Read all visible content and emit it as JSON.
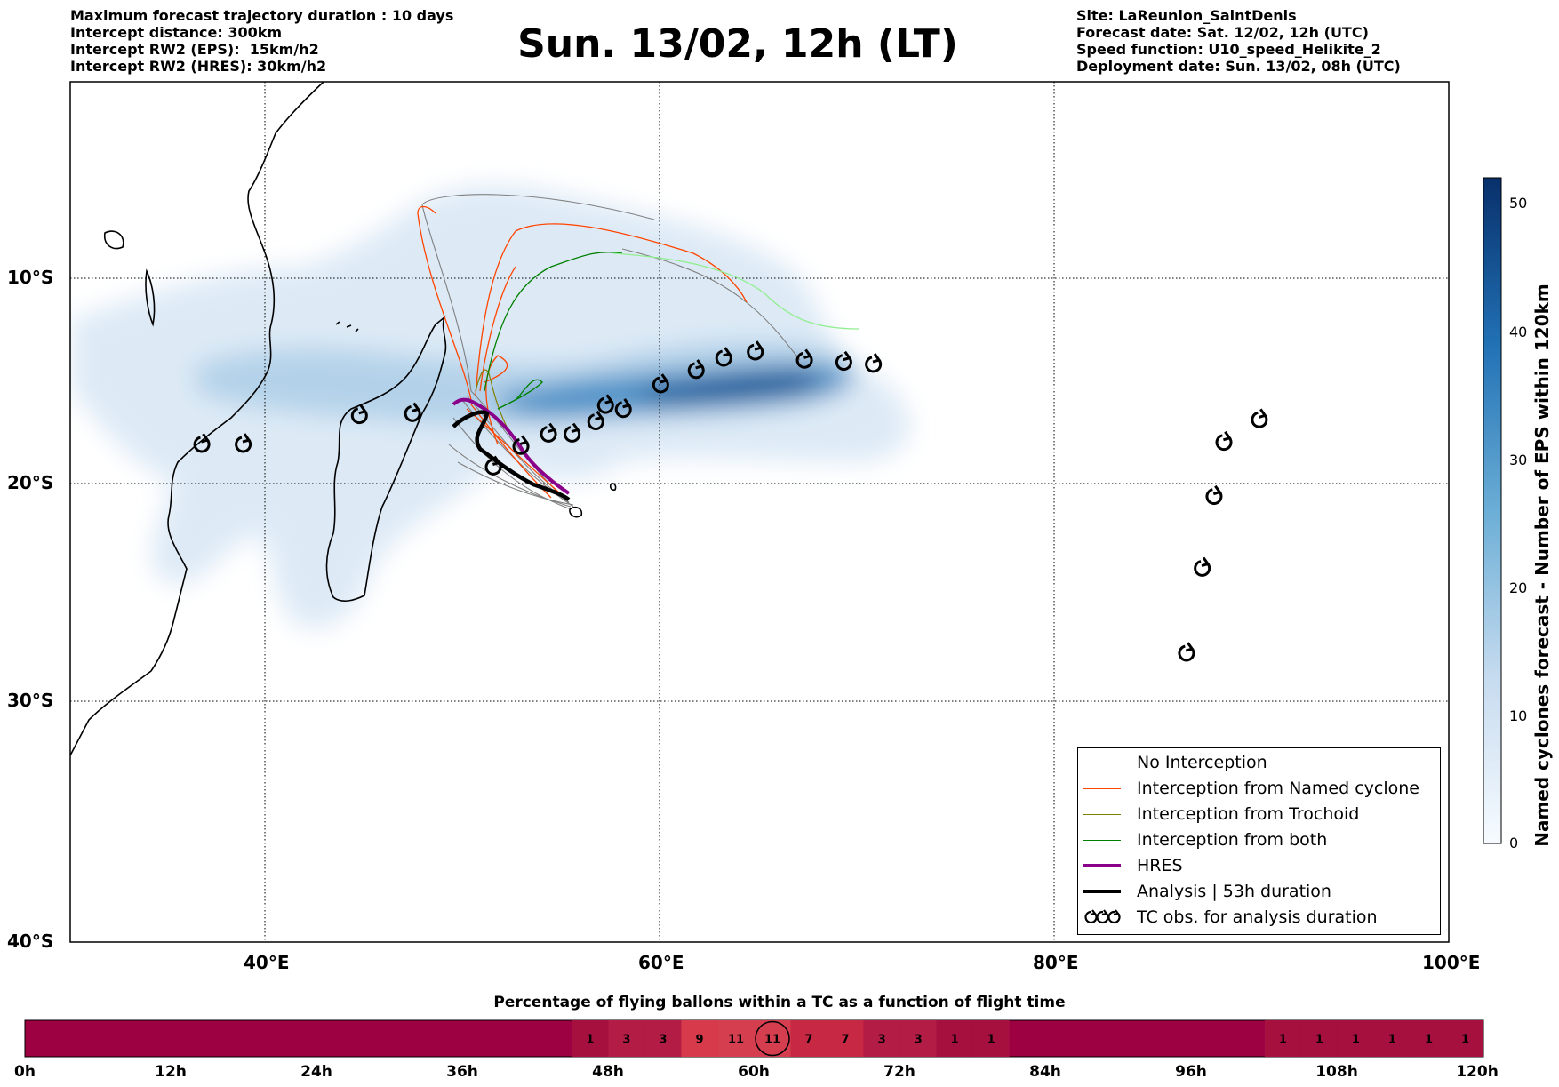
{
  "header_left": [
    "Maximum forecast trajectory duration : 10 days",
    "Intercept distance: 300km",
    "Intercept RW2 (EPS):  15km/h2",
    "Intercept RW2 (HRES): 30km/h2"
  ],
  "title": "Sun. 13/02, 12h (LT)",
  "header_right": [
    "Site: LaReunion_SaintDenis",
    "Forecast date: Sat. 12/02, 12h (UTC)",
    "Speed function: U10_speed_Helikite_2",
    "Deployment date: Sun. 13/02, 08h (UTC)"
  ],
  "map": {
    "lat_labels": [
      "10°S",
      "20°S",
      "30°S",
      "40°S"
    ],
    "lon_labels": [
      "40°E",
      "60°E",
      "80°E",
      "100°E"
    ],
    "lon_range": [
      30,
      100
    ],
    "lat_range": [
      -40,
      -0.3
    ],
    "gridlines": true
  },
  "colorbar": {
    "label": "Named cyclones forecast - Number of EPS within 120km",
    "ticks": [
      "0",
      "10",
      "20",
      "30",
      "40",
      "50"
    ],
    "range": [
      0,
      52
    ],
    "colors": [
      "#f7fbff",
      "#c6dbef",
      "#6baed6",
      "#2171b5",
      "#08306b"
    ]
  },
  "legend": [
    {
      "label": "No Interception",
      "color": "#808080",
      "style": "thin"
    },
    {
      "label": "Interception from Named cyclone",
      "color": "#ff4500",
      "style": "thin"
    },
    {
      "label": "Interception from Trochoid",
      "color": "#808000",
      "style": "thin"
    },
    {
      "label": "Interception from both",
      "color": "#008000",
      "style": "thin"
    },
    {
      "label": "HRES",
      "color": "#8b008b",
      "style": "thick"
    },
    {
      "label": "Analysis | 53h duration",
      "color": "#000000",
      "style": "thick"
    },
    {
      "label": "TC obs. for analysis duration",
      "color": "#000000",
      "style": "cyclone"
    }
  ],
  "bar": {
    "title": "Percentage of flying ballons within a TC as a function of flight time",
    "time_labels": [
      "0h",
      "12h",
      "24h",
      "36h",
      "48h",
      "60h",
      "72h",
      "84h",
      "96h",
      "108h",
      "120h"
    ],
    "base_color": "#9e0142",
    "cells": [
      {
        "start_h": 45,
        "value": "1"
      },
      {
        "start_h": 48,
        "value": "3"
      },
      {
        "start_h": 51,
        "value": "3"
      },
      {
        "start_h": 54,
        "value": "9"
      },
      {
        "start_h": 57,
        "value": "11"
      },
      {
        "start_h": 60,
        "value": "11",
        "marker": true
      },
      {
        "start_h": 63,
        "value": "7"
      },
      {
        "start_h": 66,
        "value": "7"
      },
      {
        "start_h": 69,
        "value": "3"
      },
      {
        "start_h": 72,
        "value": "3"
      },
      {
        "start_h": 75,
        "value": "1"
      },
      {
        "start_h": 78,
        "value": "1"
      },
      {
        "start_h": 102,
        "value": "1"
      },
      {
        "start_h": 105,
        "value": "1"
      },
      {
        "start_h": 108,
        "value": "1"
      },
      {
        "start_h": 111,
        "value": "1"
      },
      {
        "start_h": 114,
        "value": "1"
      },
      {
        "start_h": 117,
        "value": "1"
      }
    ]
  },
  "tc_obs": [
    {
      "lon": 36.7,
      "lat": -18.1
    },
    {
      "lon": 38.8,
      "lat": -18.1
    },
    {
      "lon": 44.7,
      "lat": -16.7
    },
    {
      "lon": 47.4,
      "lat": -16.6
    },
    {
      "lon": 51.5,
      "lat": -19.2
    },
    {
      "lon": 52.9,
      "lat": -18.2
    },
    {
      "lon": 54.3,
      "lat": -17.6
    },
    {
      "lon": 55.5,
      "lat": -17.6
    },
    {
      "lon": 56.7,
      "lat": -17.0
    },
    {
      "lon": 57.2,
      "lat": -16.2
    },
    {
      "lon": 58.1,
      "lat": -16.4
    },
    {
      "lon": 60.0,
      "lat": -15.2
    },
    {
      "lon": 61.8,
      "lat": -14.5
    },
    {
      "lon": 63.2,
      "lat": -13.9
    },
    {
      "lon": 64.8,
      "lat": -13.6
    },
    {
      "lon": 67.3,
      "lat": -14.0
    },
    {
      "lon": 69.3,
      "lat": -14.1
    },
    {
      "lon": 70.8,
      "lat": -14.2
    },
    {
      "lon": 86.7,
      "lat": -27.8
    },
    {
      "lon": 87.5,
      "lat": -23.9
    },
    {
      "lon": 88.1,
      "lat": -20.6
    },
    {
      "lon": 88.6,
      "lat": -18.0
    },
    {
      "lon": 90.4,
      "lat": -16.9
    }
  ]
}
